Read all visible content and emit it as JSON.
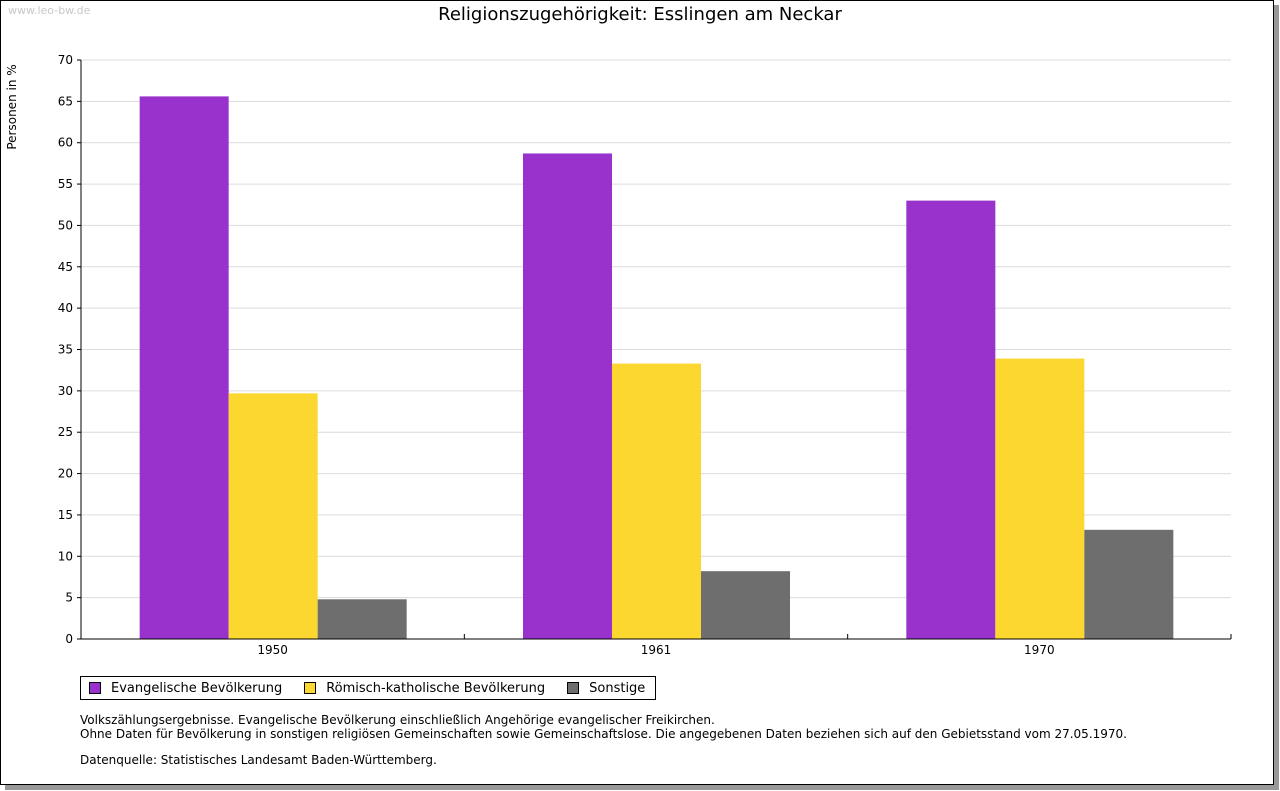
{
  "watermark": "www.leo-bw.de",
  "chart_data": {
    "type": "bar",
    "title": "Religionszugehörigkeit: Esslingen am Neckar",
    "ylabel": "Personen in %",
    "xlabel": "",
    "ylim": [
      0,
      70
    ],
    "yticks": [
      0,
      5,
      10,
      15,
      20,
      25,
      30,
      35,
      40,
      45,
      50,
      55,
      60,
      65,
      70
    ],
    "grid": true,
    "legend_position": "bottom-left",
    "categories": [
      "1950",
      "1961",
      "1970"
    ],
    "series": [
      {
        "name": "Evangelische Bevölkerung",
        "color": "#9932cc",
        "values": [
          65.6,
          58.7,
          53.0
        ]
      },
      {
        "name": "Römisch-katholische Bevölkerung",
        "color": "#fcd72f",
        "values": [
          29.7,
          33.3,
          33.9
        ]
      },
      {
        "name": "Sonstige",
        "color": "#6e6e6e",
        "values": [
          4.8,
          8.2,
          13.2
        ]
      }
    ]
  },
  "notes": {
    "line1": "Volkszählungsergebnisse. Evangelische Bevölkerung einschließlich Angehörige evangelischer Freikirchen.",
    "line2": "Ohne Daten für Bevölkerung in sonstigen religiösen Gemeinschaften sowie Gemeinschaftslose. Die angegebenen Daten beziehen sich auf den Gebietsstand vom 27.05.1970.",
    "source": "Datenquelle: Statistisches Landesamt Baden-Württemberg."
  }
}
